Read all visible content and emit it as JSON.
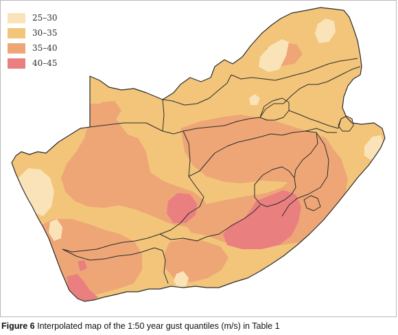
{
  "legend": [
    {
      "label": "25–30",
      "color": "#fbe3b9"
    },
    {
      "label": "30–35",
      "color": "#f2c57a"
    },
    {
      "label": "35–40",
      "color": "#eea676"
    },
    {
      "label": "40–45",
      "color": "#ea7f80"
    }
  ],
  "colors": {
    "border": "#2a2a2a",
    "frame": "#b9b9b9"
  },
  "caption": {
    "label": "Figure 6",
    "text": " Interpolated map of the 1:50 year gust quantiles (m/s) in Table 1"
  }
}
